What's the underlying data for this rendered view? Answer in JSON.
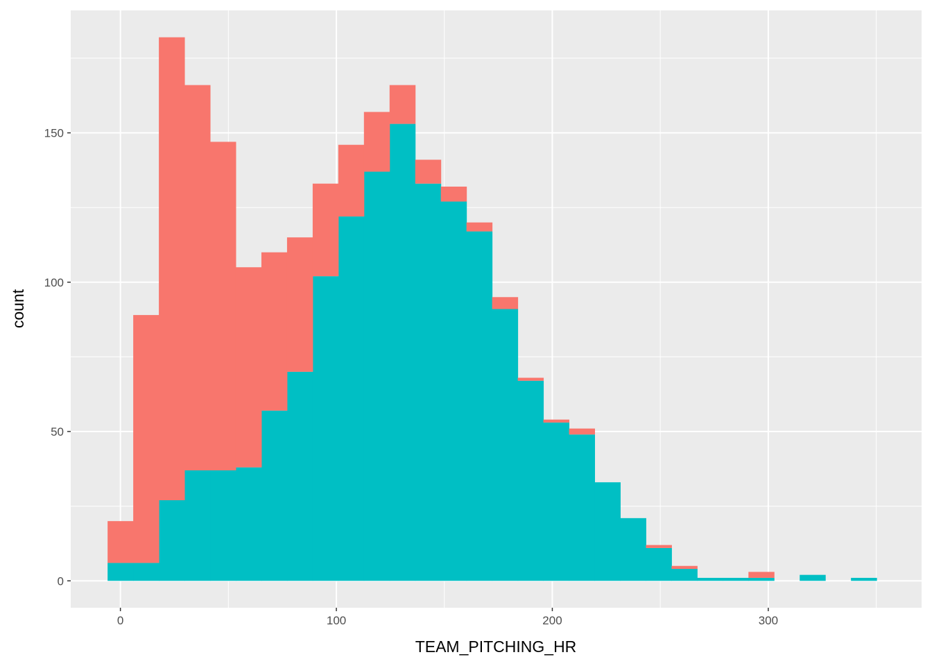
{
  "chart_data": {
    "type": "bar",
    "stacked": true,
    "xlabel": "TEAM_PITCHING_HR",
    "ylabel": "count",
    "xlim": [
      -23,
      371
    ],
    "ylim": [
      -9,
      191
    ],
    "x_ticks": [
      0,
      100,
      200,
      300
    ],
    "x_tick_labels": [
      "0",
      "100",
      "200",
      "300"
    ],
    "y_ticks": [
      0,
      50,
      100,
      150
    ],
    "y_tick_labels": [
      "0",
      "50",
      "100",
      "150"
    ],
    "grid": true,
    "legend": "none",
    "bin_width": 11.87,
    "bin_start": -5.93,
    "series": [
      {
        "color": "#00BFC4",
        "values": [
          6,
          6,
          27,
          37,
          37,
          38,
          57,
          70,
          102,
          122,
          137,
          153,
          133,
          127,
          117,
          91,
          67,
          53,
          49,
          33,
          21,
          11,
          4,
          1,
          1,
          1,
          0,
          2,
          0,
          1
        ]
      },
      {
        "color": "#F8766D",
        "values": [
          14,
          83,
          155,
          129,
          110,
          67,
          53,
          45,
          31,
          24,
          20,
          13,
          8,
          5,
          3,
          4,
          1,
          1,
          2,
          0,
          0,
          1,
          1,
          0,
          0,
          2,
          0,
          0,
          0,
          0
        ]
      }
    ]
  }
}
